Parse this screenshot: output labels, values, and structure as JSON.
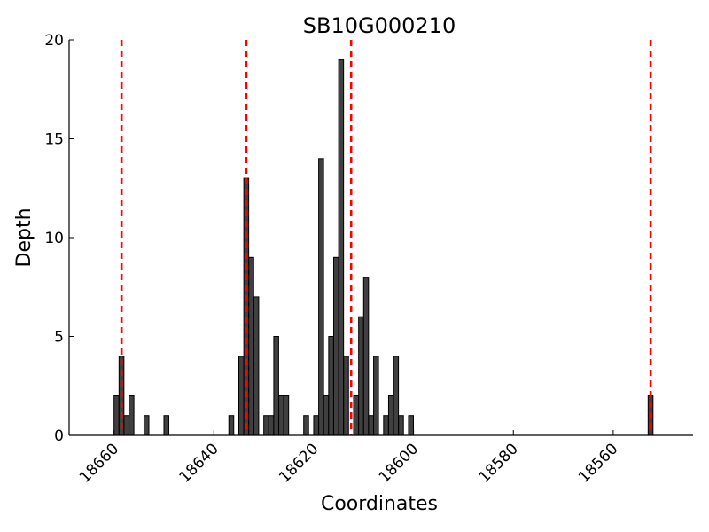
{
  "chart_data": {
    "type": "bar",
    "title": "SB10G000210",
    "xlabel": "Coordinates",
    "ylabel": "Depth",
    "x_reversed": true,
    "xlim": [
      18669,
      18544
    ],
    "ylim": [
      0,
      20
    ],
    "x_ticks": [
      18660,
      18640,
      18620,
      18600,
      18580,
      18560
    ],
    "y_ticks": [
      0,
      5,
      10,
      15,
      20
    ],
    "bar_color": "#404040",
    "bar_edge_color": "#000000",
    "bars": [
      {
        "x": 18660,
        "y": 2
      },
      {
        "x": 18659,
        "y": 4
      },
      {
        "x": 18658,
        "y": 1
      },
      {
        "x": 18657,
        "y": 2
      },
      {
        "x": 18655,
        "y": 0
      },
      {
        "x": 18654,
        "y": 1
      },
      {
        "x": 18650,
        "y": 1
      },
      {
        "x": 18637,
        "y": 1
      },
      {
        "x": 18635,
        "y": 4
      },
      {
        "x": 18634,
        "y": 13
      },
      {
        "x": 18633,
        "y": 9
      },
      {
        "x": 18632,
        "y": 7
      },
      {
        "x": 18630,
        "y": 1
      },
      {
        "x": 18629,
        "y": 1
      },
      {
        "x": 18628,
        "y": 5
      },
      {
        "x": 18627,
        "y": 2
      },
      {
        "x": 18626,
        "y": 2
      },
      {
        "x": 18622,
        "y": 1
      },
      {
        "x": 18620,
        "y": 1
      },
      {
        "x": 18619,
        "y": 14
      },
      {
        "x": 18618,
        "y": 2
      },
      {
        "x": 18617,
        "y": 5
      },
      {
        "x": 18616,
        "y": 9
      },
      {
        "x": 18615,
        "y": 19
      },
      {
        "x": 18614,
        "y": 4
      },
      {
        "x": 18612,
        "y": 2
      },
      {
        "x": 18611,
        "y": 6
      },
      {
        "x": 18610,
        "y": 8
      },
      {
        "x": 18609,
        "y": 1
      },
      {
        "x": 18608,
        "y": 4
      },
      {
        "x": 18606,
        "y": 1
      },
      {
        "x": 18605,
        "y": 2
      },
      {
        "x": 18604,
        "y": 4
      },
      {
        "x": 18603,
        "y": 1
      },
      {
        "x": 18601,
        "y": 1
      },
      {
        "x": 18553,
        "y": 2
      }
    ],
    "vlines": {
      "color": "#ff0000",
      "style": "dashed",
      "x": [
        18659,
        18634,
        18613,
        18553
      ]
    },
    "grid": false
  }
}
